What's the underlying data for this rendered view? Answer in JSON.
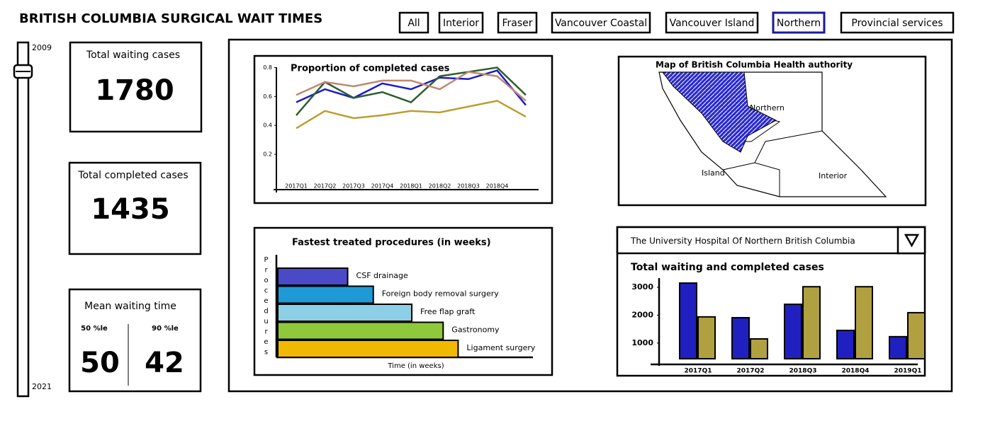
{
  "header": {
    "title": "BRITISH COLUMBIA SURGICAL WAIT TIMES"
  },
  "filters": [
    "All",
    "Interior",
    "Fraser",
    "Vancouver Coastal",
    "Vancouver Island",
    "Northern",
    "Provincial services"
  ],
  "selected_filter": "Northern",
  "slider": {
    "start": "2009",
    "end": "2021"
  },
  "kpis": {
    "waiting": {
      "label": "Total waiting cases",
      "value": 1780
    },
    "completed": {
      "label": "Total completed cases",
      "value": 1435
    },
    "mean": {
      "label": "Mean waiting time",
      "p50": {
        "label": "50 %le",
        "value": 50
      },
      "p90": {
        "label": "90 %le",
        "value": 42
      }
    }
  },
  "map": {
    "title": "Map of British Columbia Health authority",
    "regions": [
      "Northern",
      "Island",
      "Interior"
    ]
  },
  "hospital_select": {
    "value": "The University Hospital Of Northern British Columbia"
  },
  "chart_data": [
    {
      "type": "line",
      "title": "Proportion of completed cases",
      "categories": [
        "2017Q1",
        "2017Q2",
        "2017Q3",
        "2017Q4",
        "2018Q1",
        "2018Q2",
        "2018Q3",
        "2018Q4",
        null
      ],
      "series": [
        {
          "color": "#1a1acc",
          "values": [
            0.56,
            0.65,
            0.59,
            0.69,
            0.65,
            0.73,
            0.72,
            0.78,
            0.54
          ]
        },
        {
          "color": "#2e5e2e",
          "values": [
            0.47,
            0.7,
            0.59,
            0.63,
            0.56,
            0.74,
            0.77,
            0.8,
            0.61
          ]
        },
        {
          "color": "#c08870",
          "values": [
            0.61,
            0.7,
            0.67,
            0.71,
            0.71,
            0.65,
            0.77,
            0.74,
            0.57
          ]
        },
        {
          "color": "#b8a030",
          "values": [
            0.38,
            0.5,
            0.45,
            0.47,
            0.5,
            0.49,
            0.53,
            0.57,
            0.46
          ]
        }
      ],
      "ylim": [
        0,
        0.9
      ],
      "yticks": [
        0.2,
        0.4,
        0.6,
        0.8
      ]
    },
    {
      "type": "hbar",
      "title": "Fastest treated procedures (in weeks)",
      "categories": [
        "CSF drainage",
        "Foreign body removal surgery",
        "Free flap graft",
        "Gastronomy",
        "Ligament surgery"
      ],
      "values": [
        10,
        13.6,
        19,
        23.4,
        25.5
      ],
      "colors": [
        "#4a4ac8",
        "#1e9ad6",
        "#8ccfe6",
        "#8fc83a",
        "#f0b800"
      ],
      "xlim": [
        0,
        36
      ],
      "xlabel": "Time (in weeks)",
      "ylabel": "Procedures"
    },
    {
      "type": "bar",
      "title": "Total waiting and completed cases",
      "categories": [
        "2017Q1",
        "2017Q2",
        "2018Q3",
        "2018Q4",
        "2019Q1"
      ],
      "series": [
        {
          "color": "#2020c0",
          "values": [
            3150,
            1910,
            2390,
            1455,
            1230
          ]
        },
        {
          "color": "#b0a040",
          "values": [
            1940,
            1150,
            3020,
            3020,
            2090
          ]
        }
      ],
      "ylim": [
        440,
        3330
      ],
      "yticks": [
        1000,
        2000,
        3000
      ]
    }
  ]
}
